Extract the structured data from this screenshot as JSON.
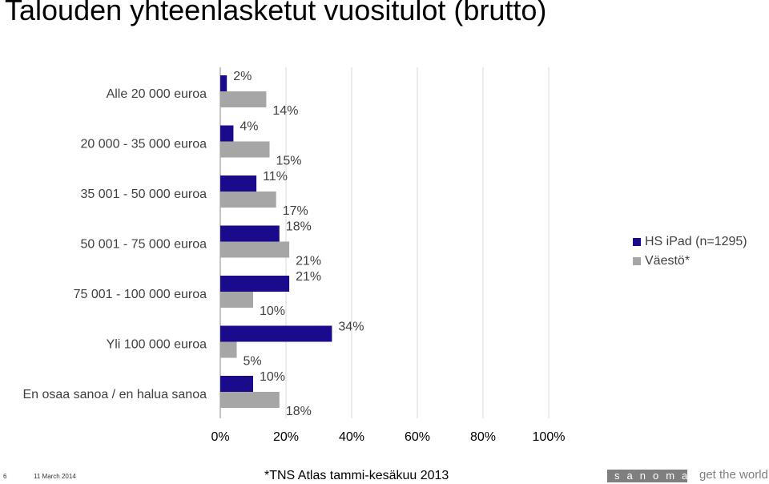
{
  "title": "Talouden yhteenlasketut vuositulot (brutto)",
  "chart_data": {
    "type": "bar",
    "orientation": "horizontal",
    "categories": [
      "Alle 20 000 euroa",
      "20 000 - 35 000 euroa",
      "35 001 - 50 000 euroa",
      "50 001 - 75 000 euroa",
      "75 001 - 100 000 euroa",
      "Yli 100 000 euroa",
      "En osaa sanoa / en halua sanoa"
    ],
    "series": [
      {
        "name": "HS iPad (n=1295)",
        "color": "#1a0a8c",
        "values": [
          2,
          4,
          11,
          18,
          21,
          34,
          10
        ],
        "labels": [
          "2%",
          "4%",
          "11%",
          "18%",
          "21%",
          "34%",
          "10%"
        ]
      },
      {
        "name": "Väestö*",
        "color": "#a6a6a6",
        "values": [
          14,
          15,
          17,
          21,
          10,
          5,
          18
        ],
        "labels": [
          "14%",
          "15%",
          "17%",
          "21%",
          "10%",
          "5%",
          "18%"
        ]
      }
    ],
    "xlim": [
      0,
      100
    ],
    "xticks": [
      "0%",
      "20%",
      "40%",
      "60%",
      "80%",
      "100%"
    ],
    "grid": true,
    "legend_position": "right",
    "title": "Talouden yhteenlasketut vuositulot (brutto)"
  },
  "footer": {
    "page_number": "6",
    "date": "11 March 2014",
    "source": "*TNS Atlas tammi-kesäkuu 2013",
    "brand": "sanoma",
    "tagline": "get the world"
  }
}
